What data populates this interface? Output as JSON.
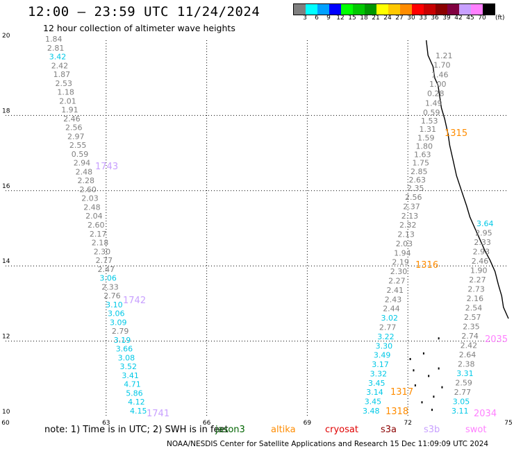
{
  "header": {
    "title": "12:00 – 23:59 UTC 11/24/2024",
    "subtitle": "12 hour collection of altimeter wave heights"
  },
  "color_scale": {
    "colors": [
      "#7f7f7f",
      "#00ffff",
      "#00a0ff",
      "#0000ff",
      "#00ff00",
      "#00c800",
      "#009600",
      "#ffff00",
      "#ffc800",
      "#ff8c00",
      "#ff0000",
      "#c80000",
      "#8b0000",
      "#800040",
      "#c8a0ff",
      "#ff80ff",
      "#000000"
    ],
    "labels": [
      "3",
      "6",
      "9",
      "12",
      "15",
      "18",
      "21",
      "24",
      "27",
      "30",
      "33",
      "36",
      "39",
      "42",
      "45",
      "70"
    ],
    "unit": "(ft)"
  },
  "map": {
    "lon_ticks": [
      "60",
      "63",
      "66",
      "69",
      "72",
      "75"
    ],
    "lat_ticks": [
      "10",
      "12",
      "14",
      "16",
      "18",
      "20"
    ]
  },
  "legend": {
    "note": "note: 1) Time is in UTC; 2) SWH is in feet",
    "satellites": [
      {
        "name": "jason3",
        "color": "#006400"
      },
      {
        "name": "altika",
        "color": "#ff8c00"
      },
      {
        "name": "cryosat",
        "color": "#e00000"
      },
      {
        "name": "s3a",
        "color": "#8b0000"
      },
      {
        "name": "s3b",
        "color": "#c8a0ff"
      },
      {
        "name": "swot",
        "color": "#ff80ff"
      }
    ]
  },
  "footer": {
    "credit": "NOAA/NESDIS Center for Satellite Applications and Research 15 Dec 11:09:09 UTC 2024"
  },
  "tracks": [
    {
      "name": "track-west",
      "times": [
        {
          "label": "1743",
          "color": "#c8a0ff"
        },
        {
          "label": "1742",
          "color": "#c8a0ff"
        },
        {
          "label": "1741",
          "color": "#c8a0ff"
        }
      ],
      "values": [
        {
          "v": "1.84",
          "c": "#7f7f7f"
        },
        {
          "v": "2.81",
          "c": "#7f7f7f"
        },
        {
          "v": "3.42",
          "c": "#00c8e6"
        },
        {
          "v": "2.42",
          "c": "#7f7f7f"
        },
        {
          "v": "1.87",
          "c": "#7f7f7f"
        },
        {
          "v": "2.53",
          "c": "#7f7f7f"
        },
        {
          "v": "1.18",
          "c": "#7f7f7f"
        },
        {
          "v": "2.01",
          "c": "#7f7f7f"
        },
        {
          "v": "1.91",
          "c": "#7f7f7f"
        },
        {
          "v": "2.46",
          "c": "#7f7f7f"
        },
        {
          "v": "2.56",
          "c": "#7f7f7f"
        },
        {
          "v": "2.97",
          "c": "#7f7f7f"
        },
        {
          "v": "2.55",
          "c": "#7f7f7f"
        },
        {
          "v": "0.59",
          "c": "#7f7f7f"
        },
        {
          "v": "2.94",
          "c": "#7f7f7f"
        },
        {
          "v": "2.48",
          "c": "#7f7f7f"
        },
        {
          "v": "2.28",
          "c": "#7f7f7f"
        },
        {
          "v": "2.60",
          "c": "#7f7f7f"
        },
        {
          "v": "2.03",
          "c": "#7f7f7f"
        },
        {
          "v": "2.48",
          "c": "#7f7f7f"
        },
        {
          "v": "2.04",
          "c": "#7f7f7f"
        },
        {
          "v": "2.60",
          "c": "#7f7f7f"
        },
        {
          "v": "2.17",
          "c": "#7f7f7f"
        },
        {
          "v": "2.18",
          "c": "#7f7f7f"
        },
        {
          "v": "2.30",
          "c": "#7f7f7f"
        },
        {
          "v": "2.77",
          "c": "#7f7f7f"
        },
        {
          "v": "2.47",
          "c": "#7f7f7f"
        },
        {
          "v": "3.06",
          "c": "#00c8e6"
        },
        {
          "v": "2.33",
          "c": "#7f7f7f"
        },
        {
          "v": "2.76",
          "c": "#7f7f7f"
        },
        {
          "v": "3.10",
          "c": "#00c8e6"
        },
        {
          "v": "3.06",
          "c": "#00c8e6"
        },
        {
          "v": "3.09",
          "c": "#00c8e6"
        },
        {
          "v": "2.79",
          "c": "#7f7f7f"
        },
        {
          "v": "3.19",
          "c": "#00c8e6"
        },
        {
          "v": "3.66",
          "c": "#00c8e6"
        },
        {
          "v": "3.08",
          "c": "#00c8e6"
        },
        {
          "v": "3.52",
          "c": "#00c8e6"
        },
        {
          "v": "3.41",
          "c": "#00c8e6"
        },
        {
          "v": "4.71",
          "c": "#00c8e6"
        },
        {
          "v": "5.86",
          "c": "#00c8e6"
        },
        {
          "v": "4.12",
          "c": "#00c8e6"
        },
        {
          "v": "4.15",
          "c": "#00c8e6"
        }
      ]
    },
    {
      "name": "track-east-a",
      "times": [
        {
          "label": "1316",
          "color": "#ff8c00"
        },
        {
          "label": "1317",
          "color": "#ff8c00"
        },
        {
          "label": "1318",
          "color": "#ff8c00"
        }
      ],
      "values": [
        {
          "v": "2.56",
          "c": "#7f7f7f"
        },
        {
          "v": "2.37",
          "c": "#7f7f7f"
        },
        {
          "v": "2.13",
          "c": "#7f7f7f"
        },
        {
          "v": "2.32",
          "c": "#7f7f7f"
        },
        {
          "v": "2.13",
          "c": "#7f7f7f"
        },
        {
          "v": "2.03",
          "c": "#7f7f7f"
        },
        {
          "v": "1.94",
          "c": "#7f7f7f"
        },
        {
          "v": "2.19",
          "c": "#7f7f7f"
        },
        {
          "v": "2.30",
          "c": "#7f7f7f"
        },
        {
          "v": "2.27",
          "c": "#7f7f7f"
        },
        {
          "v": "2.41",
          "c": "#7f7f7f"
        },
        {
          "v": "2.43",
          "c": "#7f7f7f"
        },
        {
          "v": "2.44",
          "c": "#7f7f7f"
        },
        {
          "v": "3.02",
          "c": "#00c8e6"
        },
        {
          "v": "2.77",
          "c": "#7f7f7f"
        },
        {
          "v": "3.22",
          "c": "#00c8e6"
        },
        {
          "v": "3.30",
          "c": "#00c8e6"
        },
        {
          "v": "3.49",
          "c": "#00c8e6"
        },
        {
          "v": "3.17",
          "c": "#00c8e6"
        },
        {
          "v": "3.32",
          "c": "#00c8e6"
        },
        {
          "v": "3.45",
          "c": "#00c8e6"
        },
        {
          "v": "3.14",
          "c": "#00c8e6"
        },
        {
          "v": "3.45",
          "c": "#00c8e6"
        },
        {
          "v": "3.48",
          "c": "#00c8e6"
        }
      ]
    },
    {
      "name": "track-north-a",
      "times": [
        {
          "label": "1315",
          "color": "#ff8c00"
        }
      ],
      "values": [
        {
          "v": "1.53",
          "c": "#7f7f7f"
        },
        {
          "v": "1.31",
          "c": "#7f7f7f"
        },
        {
          "v": "1.59",
          "c": "#7f7f7f"
        },
        {
          "v": "1.80",
          "c": "#7f7f7f"
        },
        {
          "v": "1.63",
          "c": "#7f7f7f"
        },
        {
          "v": "1.75",
          "c": "#7f7f7f"
        },
        {
          "v": "2.85",
          "c": "#7f7f7f"
        },
        {
          "v": "2.63",
          "c": "#7f7f7f"
        },
        {
          "v": "2.35",
          "c": "#7f7f7f"
        }
      ]
    },
    {
      "name": "track-north-b",
      "times": [],
      "values": [
        {
          "v": "1.21",
          "c": "#7f7f7f"
        },
        {
          "v": "1.70",
          "c": "#7f7f7f"
        },
        {
          "v": "1.46",
          "c": "#7f7f7f"
        },
        {
          "v": "1.00",
          "c": "#7f7f7f"
        },
        {
          "v": "0.28",
          "c": "#7f7f7f"
        },
        {
          "v": "1.49",
          "c": "#7f7f7f"
        },
        {
          "v": "0.59",
          "c": "#7f7f7f"
        }
      ]
    },
    {
      "name": "track-east-b",
      "times": [
        {
          "label": "2035",
          "color": "#ff80ff"
        },
        {
          "label": "2034",
          "color": "#ff80ff"
        }
      ],
      "values": [
        {
          "v": "3.64",
          "c": "#00c8e6"
        },
        {
          "v": "2.95",
          "c": "#7f7f7f"
        },
        {
          "v": "2.33",
          "c": "#7f7f7f"
        },
        {
          "v": "2.93",
          "c": "#7f7f7f"
        },
        {
          "v": "2.46",
          "c": "#7f7f7f"
        },
        {
          "v": "1.90",
          "c": "#7f7f7f"
        },
        {
          "v": "2.27",
          "c": "#7f7f7f"
        },
        {
          "v": "2.73",
          "c": "#7f7f7f"
        },
        {
          "v": "2.16",
          "c": "#7f7f7f"
        },
        {
          "v": "2.54",
          "c": "#7f7f7f"
        },
        {
          "v": "2.57",
          "c": "#7f7f7f"
        },
        {
          "v": "2.35",
          "c": "#7f7f7f"
        },
        {
          "v": "2.74",
          "c": "#7f7f7f"
        },
        {
          "v": "2.42",
          "c": "#7f7f7f"
        },
        {
          "v": "2.64",
          "c": "#7f7f7f"
        },
        {
          "v": "2.38",
          "c": "#7f7f7f"
        },
        {
          "v": "3.31",
          "c": "#00c8e6"
        },
        {
          "v": "2.59",
          "c": "#7f7f7f"
        },
        {
          "v": "2.77",
          "c": "#7f7f7f"
        },
        {
          "v": "3.05",
          "c": "#00c8e6"
        },
        {
          "v": "3.11",
          "c": "#00c8e6"
        }
      ]
    }
  ]
}
